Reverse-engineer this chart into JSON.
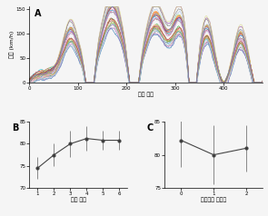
{
  "panel_A": {
    "title": "A",
    "xlabel": "자막 위치",
    "ylabel": "속도 (km/h)",
    "xlim": [
      0,
      480
    ],
    "ylim": [
      0,
      155
    ],
    "xticks": [
      0,
      100,
      200,
      300,
      400
    ],
    "yticks": [
      0,
      50,
      100,
      150
    ],
    "n_lines": 30
  },
  "panel_B": {
    "title": "B",
    "xlabel": "시행 순서",
    "x": [
      1,
      2,
      3,
      4,
      5,
      6
    ],
    "y": [
      74.5,
      77.5,
      80.0,
      81.2,
      80.8,
      80.8
    ],
    "yerr": [
      2.5,
      2.5,
      3.0,
      2.8,
      2.2,
      2.2
    ],
    "xlim": [
      0.5,
      6.5
    ],
    "ylim": [
      70,
      85
    ],
    "xticks": [
      1,
      2,
      3,
      4,
      5,
      6
    ],
    "yticks": [
      70,
      75,
      80,
      85
    ]
  },
  "panel_C": {
    "title": "C",
    "xlabel": "이차과제 난이도",
    "x": [
      0,
      1,
      2
    ],
    "y": [
      82.2,
      80.0,
      81.0
    ],
    "yerr": [
      4.0,
      4.5,
      3.5
    ],
    "xlim": [
      -0.5,
      2.5
    ],
    "ylim": [
      75,
      85
    ],
    "xticks": [
      0,
      1,
      2
    ],
    "yticks": [
      75,
      80,
      85
    ]
  },
  "line_colors": [
    "#e41a1c",
    "#377eb8",
    "#4daf4a",
    "#984ea3",
    "#ff7f00",
    "#a65628",
    "#f781bf",
    "#888888",
    "#17becf",
    "#bcbd22",
    "#1f77b4",
    "#ff7f0e",
    "#2ca02c",
    "#d62728",
    "#9467bd",
    "#8c564b",
    "#e377c2",
    "#7f7f7f",
    "#aec7e8",
    "#ffbb78",
    "#98df8a",
    "#ff9896",
    "#c5b0d5",
    "#c49c94",
    "#f7b6d2",
    "#dbdb8d",
    "#9edae5",
    "#ad494a",
    "#8ca252",
    "#6b6ecf"
  ]
}
